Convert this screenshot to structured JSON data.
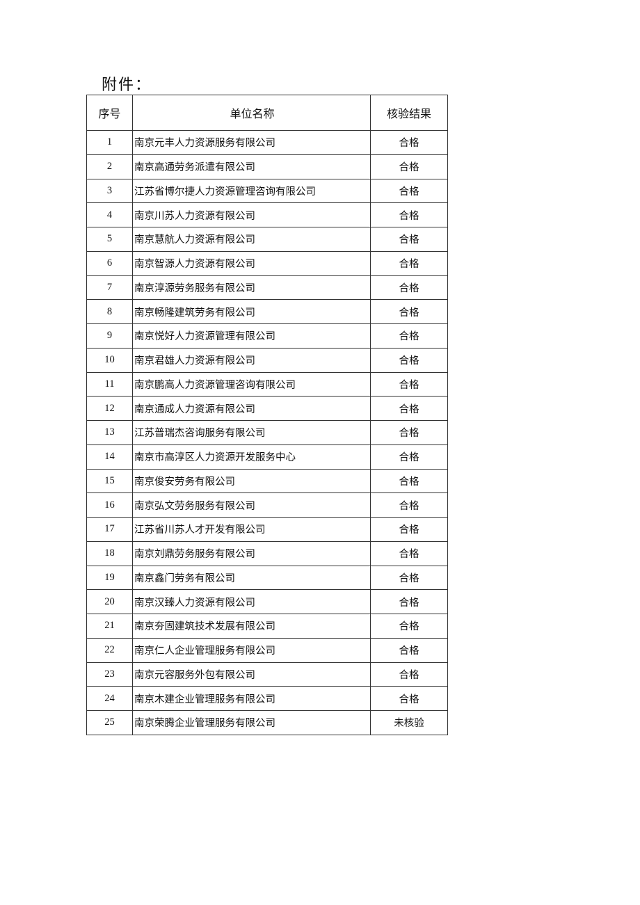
{
  "title": "附件：",
  "table": {
    "headers": [
      "序号",
      "单位名称",
      "核验结果"
    ],
    "rows": [
      {
        "no": "1",
        "name": "南京元丰人力资源服务有限公司",
        "result": "合格"
      },
      {
        "no": "2",
        "name": "南京高通劳务派遣有限公司",
        "result": "合格"
      },
      {
        "no": "3",
        "name": "江苏省博尔捷人力资源管理咨询有限公司",
        "result": "合格"
      },
      {
        "no": "4",
        "name": "南京川苏人力资源有限公司",
        "result": "合格"
      },
      {
        "no": "5",
        "name": "南京慧航人力资源有限公司",
        "result": "合格"
      },
      {
        "no": "6",
        "name": "南京智源人力资源有限公司",
        "result": "合格"
      },
      {
        "no": "7",
        "name": "南京淳源劳务服务有限公司",
        "result": "合格"
      },
      {
        "no": "8",
        "name": "南京畅隆建筑劳务有限公司",
        "result": "合格"
      },
      {
        "no": "9",
        "name": "南京悦好人力资源管理有限公司",
        "result": "合格"
      },
      {
        "no": "10",
        "name": "南京君雄人力资源有限公司",
        "result": "合格"
      },
      {
        "no": "11",
        "name": "南京鹏高人力资源管理咨询有限公司",
        "result": "合格"
      },
      {
        "no": "12",
        "name": "南京通成人力资源有限公司",
        "result": "合格"
      },
      {
        "no": "13",
        "name": "江苏普瑞杰咨询服务有限公司",
        "result": "合格"
      },
      {
        "no": "14",
        "name": "南京市高淳区人力资源开发服务中心",
        "result": "合格"
      },
      {
        "no": "15",
        "name": "南京俊安劳务有限公司",
        "result": "合格"
      },
      {
        "no": "16",
        "name": "南京弘文劳务服务有限公司",
        "result": "合格"
      },
      {
        "no": "17",
        "name": "江苏省川苏人才开发有限公司",
        "result": "合格"
      },
      {
        "no": "18",
        "name": "南京刘鼎劳务服务有限公司",
        "result": "合格"
      },
      {
        "no": "19",
        "name": "南京鑫门劳务有限公司",
        "result": "合格"
      },
      {
        "no": "20",
        "name": "南京汉臻人力资源有限公司",
        "result": "合格"
      },
      {
        "no": "21",
        "name": "南京夯固建筑技术发展有限公司",
        "result": "合格"
      },
      {
        "no": "22",
        "name": "南京仁人企业管理服务有限公司",
        "result": "合格"
      },
      {
        "no": "23",
        "name": "南京元容服务外包有限公司",
        "result": "合格"
      },
      {
        "no": "24",
        "name": "南京木建企业管理服务有限公司",
        "result": "合格"
      },
      {
        "no": "25",
        "name": "南京荣腾企业管理服务有限公司",
        "result": "未核验"
      }
    ]
  }
}
